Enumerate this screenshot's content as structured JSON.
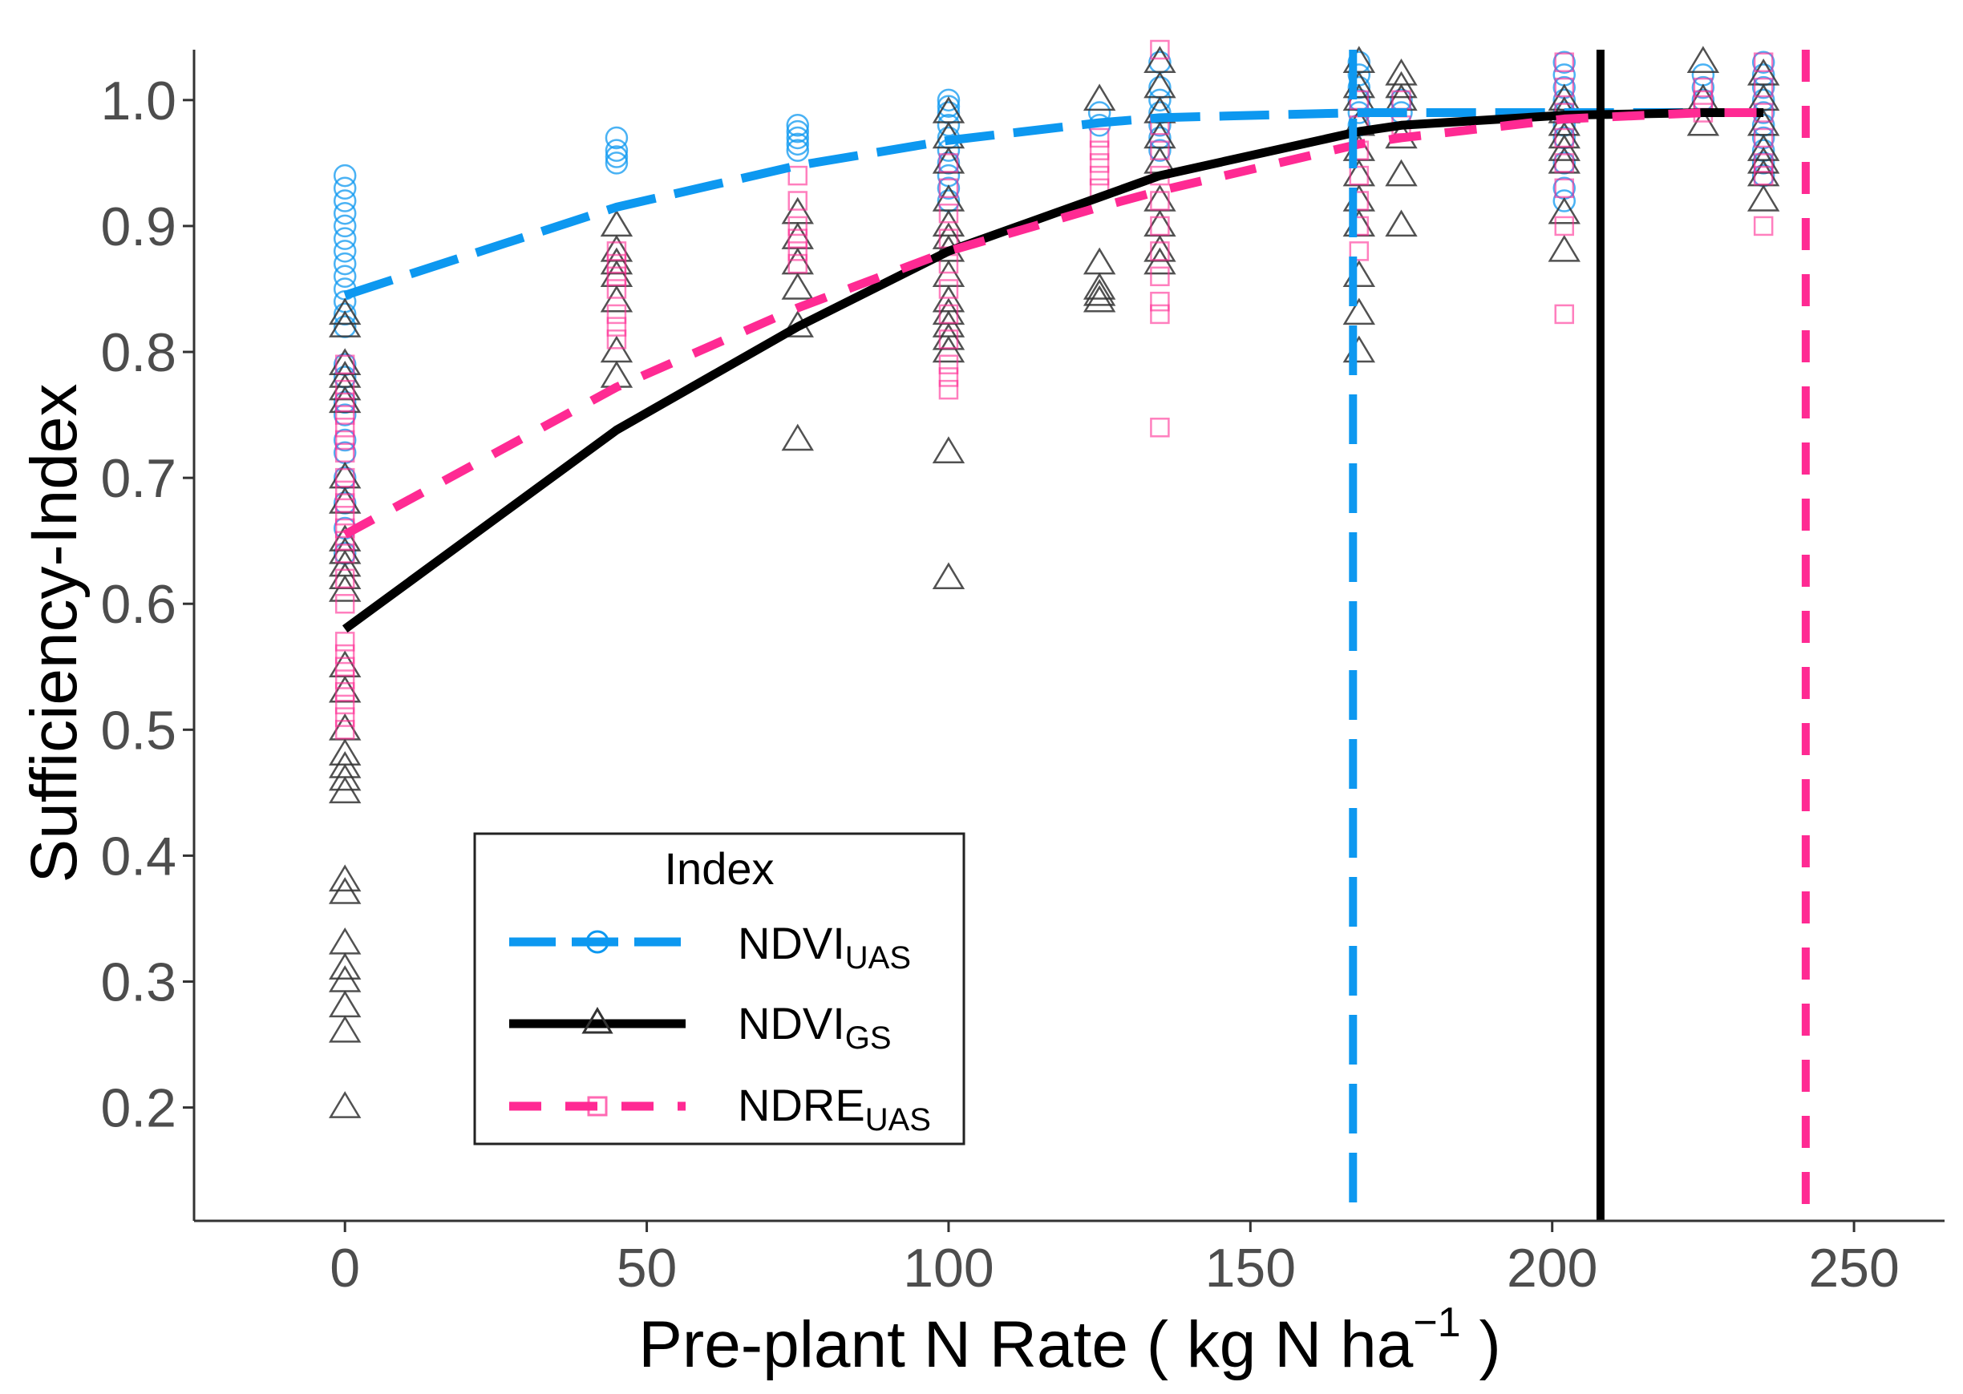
{
  "chart_data": {
    "type": "scatter",
    "title": "",
    "xlabel": "Pre-plant N Rate ( kg N ha",
    "xlabel_sup": "−1",
    "xlabel_end": " )",
    "ylabel": "Sufficiency-Index",
    "xlim": [
      -25,
      265
    ],
    "ylim": [
      0.11,
      1.04
    ],
    "x_ticks": [
      0,
      50,
      100,
      150,
      200,
      250
    ],
    "x_tick_labels": [
      "0",
      "50",
      "100",
      "150",
      "200",
      "250"
    ],
    "y_ticks": [
      0.2,
      0.3,
      0.4,
      0.5,
      0.6,
      0.7,
      0.8,
      0.9,
      1.0
    ],
    "y_tick_labels": [
      "0.2",
      "0.3",
      "0.4",
      "0.5",
      "0.6",
      "0.7",
      "0.8",
      "0.9",
      "1.0"
    ],
    "legend": {
      "title": "Index",
      "position": "bottom-left",
      "entries": [
        {
          "name": "NDVI",
          "sub": "UAS",
          "series": "ndvi_uas"
        },
        {
          "name": "NDVI",
          "sub": "GS",
          "series": "ndvi_gs"
        },
        {
          "name": "NDRE",
          "sub": "UAS",
          "series": "ndre_uas"
        }
      ]
    },
    "colors": {
      "ndvi_uas": "#0d98f0",
      "ndvi_gs": "#000000",
      "ndre_uas": "#ff2a93",
      "axis": "#333333",
      "tick_text": "#4d4d4d"
    },
    "series": [
      {
        "name": "NDVI_UAS",
        "id": "ndvi_uas",
        "marker": "circle",
        "line_style": "dashed",
        "curve": {
          "x": [
            0,
            45,
            75,
            100,
            125,
            135,
            168,
            175,
            202,
            225,
            235
          ],
          "y": [
            0.845,
            0.915,
            0.948,
            0.968,
            0.982,
            0.986,
            0.99,
            0.99,
            0.99,
            0.99,
            0.99
          ]
        },
        "threshold_x": 167,
        "points": [
          {
            "x": 0,
            "y": [
              0.94,
              0.93,
              0.92,
              0.91,
              0.9,
              0.89,
              0.88,
              0.87,
              0.86,
              0.85,
              0.84,
              0.83,
              0.82,
              0.79,
              0.78,
              0.76,
              0.75,
              0.73,
              0.72,
              0.7,
              0.68,
              0.66,
              0.64
            ]
          },
          {
            "x": 45,
            "y": [
              0.97,
              0.96,
              0.955,
              0.95
            ]
          },
          {
            "x": 75,
            "y": [
              0.98,
              0.975,
              0.97,
              0.965,
              0.96
            ]
          },
          {
            "x": 100,
            "y": [
              1.0,
              0.995,
              0.99,
              0.98,
              0.97,
              0.96,
              0.95,
              0.94,
              0.93,
              0.92
            ]
          },
          {
            "x": 125,
            "y": [
              0.99,
              0.98
            ]
          },
          {
            "x": 135,
            "y": [
              1.03,
              1.01,
              1.0,
              0.99,
              0.98,
              0.97,
              0.96
            ]
          },
          {
            "x": 168,
            "y": [
              1.03,
              1.02,
              1.01,
              1.0,
              0.99,
              0.98
            ]
          },
          {
            "x": 175,
            "y": [
              1.0,
              0.99
            ]
          },
          {
            "x": 202,
            "y": [
              1.03,
              1.02,
              1.01,
              1.0,
              0.99,
              0.98,
              0.97,
              0.95,
              0.93,
              0.92
            ]
          },
          {
            "x": 225,
            "y": [
              1.02,
              1.01,
              1.0
            ]
          },
          {
            "x": 235,
            "y": [
              1.03,
              1.02,
              1.01,
              1.0,
              0.99,
              0.98,
              0.97,
              0.96,
              0.95,
              0.94
            ]
          }
        ]
      },
      {
        "name": "NDVI_GS",
        "id": "ndvi_gs",
        "marker": "triangle",
        "line_style": "solid",
        "curve": {
          "x": [
            0,
            45,
            75,
            100,
            135,
            168,
            175,
            202,
            225,
            235
          ],
          "y": [
            0.58,
            0.738,
            0.82,
            0.88,
            0.94,
            0.975,
            0.98,
            0.988,
            0.99,
            0.99
          ]
        },
        "threshold_x": 208,
        "points": [
          {
            "x": 0,
            "y": [
              0.83,
              0.82,
              0.79,
              0.78,
              0.77,
              0.76,
              0.7,
              0.68,
              0.65,
              0.64,
              0.63,
              0.62,
              0.61,
              0.55,
              0.53,
              0.5,
              0.48,
              0.47,
              0.46,
              0.45,
              0.38,
              0.37,
              0.33,
              0.31,
              0.3,
              0.28,
              0.26,
              0.2
            ]
          },
          {
            "x": 45,
            "y": [
              0.9,
              0.88,
              0.87,
              0.86,
              0.84,
              0.8,
              0.78
            ]
          },
          {
            "x": 75,
            "y": [
              0.91,
              0.89,
              0.87,
              0.85,
              0.82,
              0.73
            ]
          },
          {
            "x": 100,
            "y": [
              0.99,
              0.97,
              0.95,
              0.92,
              0.9,
              0.89,
              0.88,
              0.86,
              0.84,
              0.83,
              0.82,
              0.81,
              0.8,
              0.72,
              0.62
            ]
          },
          {
            "x": 125,
            "y": [
              1.0,
              0.87,
              0.85,
              0.845,
              0.84
            ]
          },
          {
            "x": 135,
            "y": [
              1.03,
              1.01,
              0.99,
              0.97,
              0.95,
              0.92,
              0.9,
              0.88,
              0.87
            ]
          },
          {
            "x": 168,
            "y": [
              1.03,
              1.01,
              1.0,
              0.98,
              0.96,
              0.94,
              0.92,
              0.9,
              0.86,
              0.83,
              0.8
            ]
          },
          {
            "x": 175,
            "y": [
              1.02,
              1.01,
              1.0,
              0.97,
              0.94,
              0.9
            ]
          },
          {
            "x": 202,
            "y": [
              1.0,
              0.99,
              0.98,
              0.97,
              0.96,
              0.95,
              0.91,
              0.88
            ]
          },
          {
            "x": 225,
            "y": [
              1.03,
              1.0,
              0.98
            ]
          },
          {
            "x": 235,
            "y": [
              1.02,
              1.0,
              0.98,
              0.96,
              0.95,
              0.94,
              0.92
            ]
          }
        ]
      },
      {
        "name": "NDRE_UAS",
        "id": "ndre_uas",
        "marker": "square",
        "line_style": "dashed",
        "curve": {
          "x": [
            0,
            45,
            75,
            100,
            125,
            135,
            168,
            175,
            202,
            225,
            235
          ],
          "y": [
            0.655,
            0.772,
            0.835,
            0.88,
            0.915,
            0.928,
            0.965,
            0.97,
            0.985,
            0.99,
            0.99
          ]
        },
        "threshold_x": 242,
        "points": [
          {
            "x": 0,
            "y": [
              0.79,
              0.77,
              0.76,
              0.75,
              0.74,
              0.73,
              0.72,
              0.7,
              0.69,
              0.68,
              0.67,
              0.66,
              0.65,
              0.64,
              0.62,
              0.6,
              0.57,
              0.56,
              0.55,
              0.54,
              0.53,
              0.52,
              0.51,
              0.5
            ]
          },
          {
            "x": 45,
            "y": [
              0.88,
              0.87,
              0.86,
              0.85,
              0.83,
              0.82,
              0.81
            ]
          },
          {
            "x": 75,
            "y": [
              0.94,
              0.92,
              0.9,
              0.89,
              0.88,
              0.87
            ]
          },
          {
            "x": 100,
            "y": [
              0.95,
              0.93,
              0.91,
              0.89,
              0.87,
              0.85,
              0.83,
              0.81,
              0.79,
              0.78,
              0.77
            ]
          },
          {
            "x": 125,
            "y": [
              0.97,
              0.96,
              0.95,
              0.94,
              0.93
            ]
          },
          {
            "x": 135,
            "y": [
              1.04,
              0.98,
              0.96,
              0.94,
              0.92,
              0.9,
              0.88,
              0.86,
              0.84,
              0.83,
              0.74
            ]
          },
          {
            "x": 168,
            "y": [
              1.0,
              0.98,
              0.96,
              0.94,
              0.92,
              0.9,
              0.88
            ]
          },
          {
            "x": 175,
            "y": [
              1.0,
              0.98
            ]
          },
          {
            "x": 202,
            "y": [
              1.03,
              1.01,
              0.99,
              0.97,
              0.95,
              0.93,
              0.9,
              0.83
            ]
          },
          {
            "x": 225,
            "y": [
              1.01,
              1.0,
              0.99
            ]
          },
          {
            "x": 235,
            "y": [
              1.03,
              1.01,
              0.99,
              0.97,
              0.95,
              0.94,
              0.9
            ]
          }
        ]
      }
    ]
  }
}
